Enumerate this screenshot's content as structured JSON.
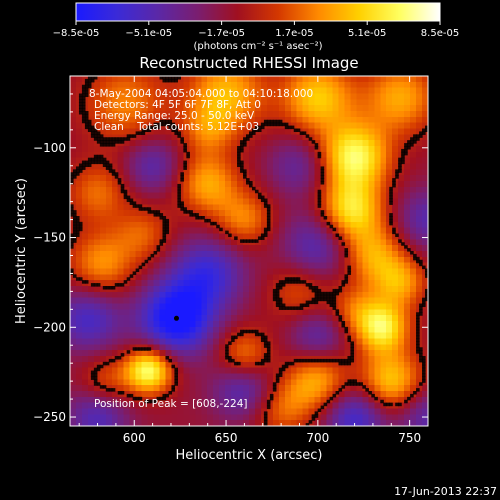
{
  "chart_data": {
    "type": "heatmap",
    "title": "Reconstructed RHESSI Image",
    "xlabel": "Heliocentric X (arcsec)",
    "ylabel": "Heliocentric Y (arcsec)",
    "xlim": [
      565,
      760
    ],
    "ylim": [
      -255,
      -60
    ],
    "xticks": [
      600,
      650,
      700,
      750
    ],
    "xtick_labels": [
      "600",
      "650",
      "700",
      "750"
    ],
    "yticks": [
      -100,
      -150,
      -200,
      -250
    ],
    "ytick_labels": [
      "-100",
      "-150",
      "-200",
      "-250"
    ],
    "colorbar": {
      "range": [
        -8.5e-05,
        8.5e-05
      ],
      "tick_labels": [
        "-8.5e-05",
        "-5.1e-05",
        "-1.7e-05",
        "1.7e-05",
        "5.1e-05",
        "8.5e-05"
      ],
      "unit_label": "(photons cm⁻² s⁻¹ asec⁻²)",
      "colors": [
        "#1a1aff",
        "#3a2ad8",
        "#5a28a8",
        "#7a1e70",
        "#a01020",
        "#d43800",
        "#ff8a00",
        "#ffd000",
        "#ffff60",
        "#ffffff"
      ]
    },
    "info": {
      "time": "8-May-2004 04:05:04.000 to 04:10:18.000",
      "detectors": "Detectors: 4F 5F 6F 7F 8F, Att 0",
      "energy": "Energy Range: 25.0 - 50.0 keV",
      "method": "Clean    Total counts: 5.12E+03"
    },
    "peak_label": "Position of Peak = [608,-224]",
    "peak": [
      608,
      -224
    ],
    "marker": [
      623,
      -195
    ],
    "sources": [
      {
        "x": 595,
        "y": -75,
        "v": 4e-05,
        "s": 16
      },
      {
        "x": 650,
        "y": -70,
        "v": 5.5e-05,
        "s": 15
      },
      {
        "x": 700,
        "y": -72,
        "v": 6e-05,
        "s": 14
      },
      {
        "x": 745,
        "y": -72,
        "v": 5e-05,
        "s": 14
      },
      {
        "x": 720,
        "y": -105,
        "v": 8e-05,
        "s": 13
      },
      {
        "x": 718,
        "y": -135,
        "v": 7e-05,
        "s": 12
      },
      {
        "x": 730,
        "y": -160,
        "v": 5e-05,
        "s": 12
      },
      {
        "x": 640,
        "y": -120,
        "v": 5e-05,
        "s": 12
      },
      {
        "x": 660,
        "y": -140,
        "v": 4e-05,
        "s": 11
      },
      {
        "x": 580,
        "y": -125,
        "v": 3.5e-05,
        "s": 12
      },
      {
        "x": 582,
        "y": -165,
        "v": 4.5e-05,
        "s": 13
      },
      {
        "x": 605,
        "y": -148,
        "v": 3e-05,
        "s": 11
      },
      {
        "x": 690,
        "y": -180,
        "v": 3e-05,
        "s": 12
      },
      {
        "x": 745,
        "y": -175,
        "v": 4.5e-05,
        "s": 10
      },
      {
        "x": 735,
        "y": -200,
        "v": 7.5e-05,
        "s": 10
      },
      {
        "x": 740,
        "y": -230,
        "v": 6e-05,
        "s": 12
      },
      {
        "x": 700,
        "y": -230,
        "v": 5e-05,
        "s": 12
      },
      {
        "x": 608,
        "y": -224,
        "v": 8.5e-05,
        "s": 9
      },
      {
        "x": 660,
        "y": -215,
        "v": 4e-05,
        "s": 10
      },
      {
        "x": 680,
        "y": -245,
        "v": 3.5e-05,
        "s": 12
      },
      {
        "x": 585,
        "y": -230,
        "v": 3e-05,
        "s": 10
      },
      {
        "x": 720,
        "y": -190,
        "v": 3e-05,
        "s": 10
      },
      {
        "x": 640,
        "y": -90,
        "v": 3e-05,
        "s": 10
      },
      {
        "x": 623,
        "y": -195,
        "v": -8e-05,
        "s": 14
      },
      {
        "x": 575,
        "y": -195,
        "v": -4.5e-05,
        "s": 13
      },
      {
        "x": 640,
        "y": -170,
        "v": -5e-05,
        "s": 14
      },
      {
        "x": 700,
        "y": -155,
        "v": -4e-05,
        "s": 14
      },
      {
        "x": 690,
        "y": -110,
        "v": -3e-05,
        "s": 12
      },
      {
        "x": 610,
        "y": -110,
        "v": -3.5e-05,
        "s": 11
      },
      {
        "x": 700,
        "y": -205,
        "v": -3.5e-05,
        "s": 11
      },
      {
        "x": 660,
        "y": -235,
        "v": -4e-05,
        "s": 12
      },
      {
        "x": 720,
        "y": -250,
        "v": -5e-05,
        "s": 12
      },
      {
        "x": 760,
        "y": -140,
        "v": -3.5e-05,
        "s": 12
      },
      {
        "x": 580,
        "y": -250,
        "v": -4e-05,
        "s": 12
      },
      {
        "x": 760,
        "y": -250,
        "v": -3.5e-05,
        "s": 12
      }
    ],
    "background": -1.4e-05
  },
  "footer": {
    "date_stamp": "17-Jun-2013 22:37"
  }
}
